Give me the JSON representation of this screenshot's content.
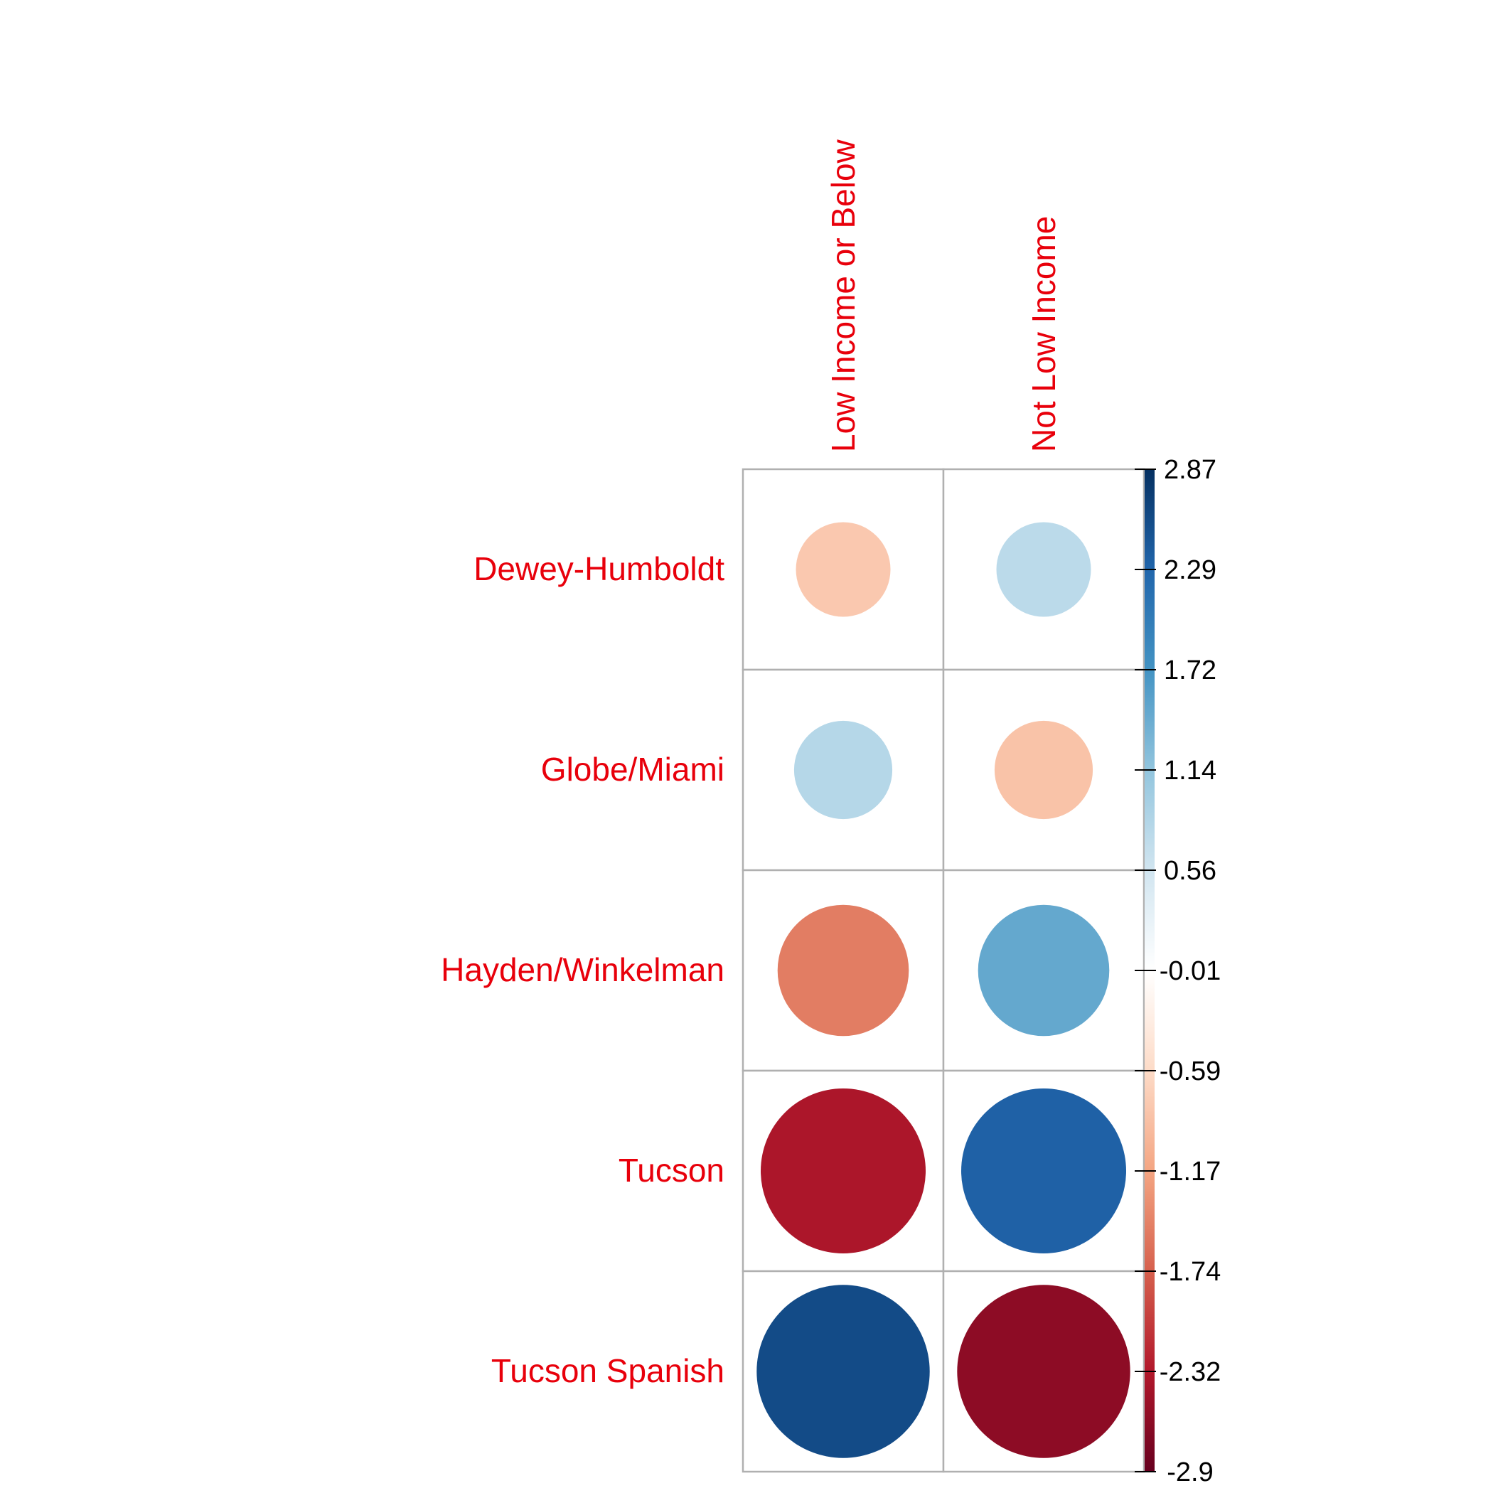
{
  "chart_data": {
    "type": "heatmap",
    "subtype": "correlation-circle-plot",
    "title": "",
    "rows": [
      "Dewey-Humboldt",
      "Globe/Miami",
      "Hayden/Winkelman",
      "Tucson",
      "Tucson Spanish"
    ],
    "columns": [
      "Low Income or Below",
      "Not Low Income"
    ],
    "values": [
      [
        -0.78,
        0.78
      ],
      [
        0.84,
        -0.84
      ],
      [
        -1.5,
        1.5
      ],
      [
        -2.37,
        2.37
      ],
      [
        2.61,
        -2.61
      ]
    ],
    "colorbar": {
      "min": -2.9,
      "max": 2.87,
      "ticks": [
        "2.87",
        "2.29",
        "1.72",
        "1.14",
        "0.56",
        "-0.01",
        "-0.59",
        "-1.17",
        "-1.74",
        "-2.32",
        "-2.9"
      ],
      "colors": [
        "#67001f",
        "#b2182b",
        "#d6604d",
        "#f4a582",
        "#fddbc7",
        "#ffffff",
        "#d1e5f0",
        "#92c5de",
        "#4393c3",
        "#2166ac",
        "#053061"
      ]
    },
    "grid": true,
    "label_color": "#e8000b",
    "grid_color": "#b0b0b0"
  }
}
